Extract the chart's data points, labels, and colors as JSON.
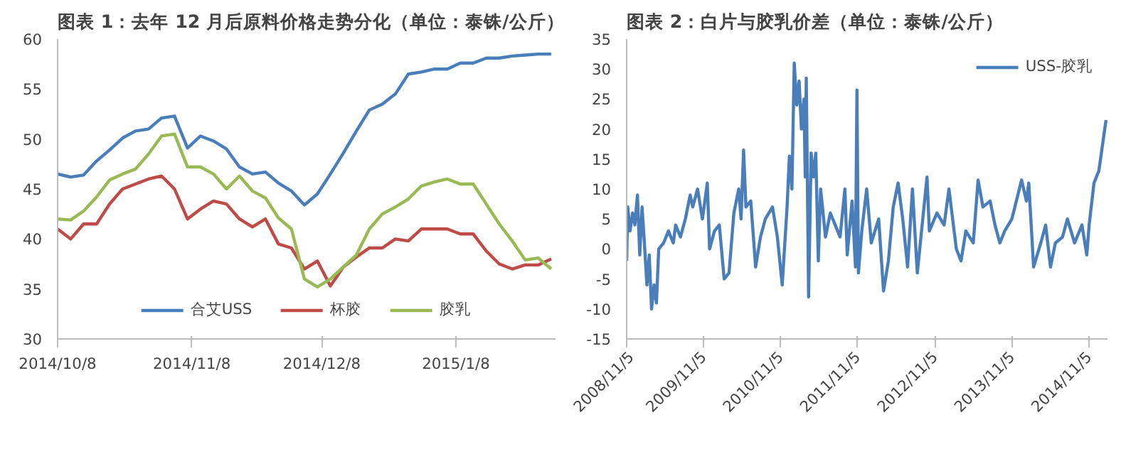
{
  "chart_data": [
    {
      "type": "line",
      "title": "图表 1：去年 12 月后原料价格走势分化（单位：泰铢/公斤）",
      "x": [
        "2014-10-08",
        "2014-10-11",
        "2014-10-14",
        "2014-10-17",
        "2014-10-20",
        "2014-10-23",
        "2014-10-26",
        "2014-10-29",
        "2014-11-01",
        "2014-11-04",
        "2014-11-07",
        "2014-11-10",
        "2014-11-13",
        "2014-11-16",
        "2014-11-19",
        "2014-11-22",
        "2014-11-25",
        "2014-11-28",
        "2014-12-01",
        "2014-12-04",
        "2014-12-07",
        "2014-12-10",
        "2014-12-13",
        "2014-12-16",
        "2014-12-19",
        "2014-12-22",
        "2014-12-25",
        "2014-12-28",
        "2014-12-31",
        "2015-01-03",
        "2015-01-06",
        "2015-01-09",
        "2015-01-12",
        "2015-01-15",
        "2015-01-18",
        "2015-01-21",
        "2015-01-24",
        "2015-01-27",
        "2015-01-30"
      ],
      "series": [
        {
          "name": "合艾USS",
          "color": "#4a7ebb",
          "values": [
            46.5,
            46.2,
            46.4,
            47.8,
            48.9,
            50.1,
            50.8,
            51,
            52.1,
            52.3,
            49.1,
            50.3,
            49.8,
            49,
            47.2,
            46.5,
            46.7,
            45.6,
            44.8,
            43.4,
            44.5,
            46.5,
            48.6,
            50.8,
            52.9,
            53.5,
            54.5,
            56.5,
            56.7,
            57,
            57,
            57.6,
            57.6,
            58.1,
            58.1,
            58.3,
            58.4,
            58.5,
            58.5
          ]
        },
        {
          "name": "杯胶",
          "color": "#be4b48",
          "values": [
            41,
            40,
            41.5,
            41.5,
            43.5,
            45,
            45.5,
            46,
            46.3,
            45,
            42,
            43,
            43.8,
            43.5,
            42,
            41.2,
            42,
            39.5,
            39.1,
            37,
            37.8,
            35.3,
            37.2,
            38.2,
            39.1,
            39.1,
            40,
            39.8,
            41,
            41,
            41,
            40.5,
            40.5,
            38.8,
            37.5,
            37,
            37.4,
            37.4,
            38
          ]
        },
        {
          "name": "胶乳",
          "color": "#98b954",
          "values": [
            42,
            41.9,
            42.8,
            44.2,
            45.9,
            46.5,
            47,
            48.5,
            50.3,
            50.5,
            47.2,
            47.2,
            46.5,
            45,
            46.3,
            44.8,
            44.1,
            42.1,
            41,
            36,
            35.2,
            36,
            37.2,
            38.4,
            41,
            42.5,
            43.2,
            44,
            45.3,
            45.7,
            46,
            45.5,
            45.5,
            43.5,
            41.5,
            39.8,
            37.9,
            38.1,
            37
          ]
        }
      ],
      "xlim": [
        "2014-10-08",
        "2015-01-31"
      ],
      "xticks": [
        {
          "value": "2014-10-08",
          "label": "2014/10/8"
        },
        {
          "value": "2014-11-08",
          "label": "2014/11/8"
        },
        {
          "value": "2014-12-08",
          "label": "2014/12/8"
        },
        {
          "value": "2015-01-08",
          "label": "2015/1/8"
        }
      ],
      "ylim": [
        30,
        60
      ],
      "yticks": [
        30,
        35,
        40,
        45,
        50,
        55,
        60
      ],
      "grid": false,
      "legend": "bottom",
      "marker": "none",
      "line_style": "solid"
    },
    {
      "type": "line",
      "title": "图表 2：白片与胶乳价差（单位：泰铢/公斤）",
      "series": [
        {
          "name": "USS-胶乳",
          "color": "#4a7ebb",
          "x": [
            "2008-11-05",
            "2008-11-10",
            "2008-11-21",
            "2008-12-03",
            "2008-12-14",
            "2008-12-26",
            "2009-01-06",
            "2009-01-17",
            "2009-01-28",
            "2009-02-09",
            "2009-02-20",
            "2009-03-03",
            "2009-03-15",
            "2009-03-26",
            "2009-04-06",
            "2009-04-29",
            "2009-05-22",
            "2009-06-14",
            "2009-06-25",
            "2009-07-18",
            "2009-08-10",
            "2009-09-02",
            "2009-09-14",
            "2009-10-07",
            "2009-10-30",
            "2009-11-22",
            "2009-12-03",
            "2009-12-26",
            "2010-01-18",
            "2010-02-10",
            "2010-03-05",
            "2010-03-28",
            "2010-04-20",
            "2010-05-01",
            "2010-05-13",
            "2010-05-24",
            "2010-06-16",
            "2010-07-09",
            "2010-08-01",
            "2010-08-24",
            "2010-09-27",
            "2010-10-20",
            "2010-11-12",
            "2010-12-05",
            "2010-12-16",
            "2010-12-28",
            "2011-01-08",
            "2011-01-20",
            "2011-01-31",
            "2011-02-11",
            "2011-02-23",
            "2011-03-01",
            "2011-03-06",
            "2011-03-17",
            "2011-03-29",
            "2011-04-09",
            "2011-04-20",
            "2011-05-02",
            "2011-05-13",
            "2011-06-05",
            "2011-06-28",
            "2011-07-21",
            "2011-08-13",
            "2011-09-05",
            "2011-09-16",
            "2011-10-09",
            "2011-10-25",
            "2011-11-01",
            "2011-11-08",
            "2011-11-24",
            "2011-12-17",
            "2012-01-08",
            "2012-02-12",
            "2012-03-06",
            "2012-03-29",
            "2012-04-21",
            "2012-05-14",
            "2012-06-05",
            "2012-06-28",
            "2012-07-21",
            "2012-08-13",
            "2012-09-05",
            "2012-09-28",
            "2012-10-09",
            "2012-11-14",
            "2012-12-18",
            "2013-01-10",
            "2013-02-14",
            "2013-03-08",
            "2013-03-31",
            "2013-05-05",
            "2013-05-28",
            "2013-06-20",
            "2013-07-24",
            "2013-08-16",
            "2013-09-08",
            "2013-10-01",
            "2013-11-04",
            "2013-12-20",
            "2014-01-12",
            "2014-01-23",
            "2014-02-15",
            "2014-03-21",
            "2014-04-13",
            "2014-05-06",
            "2014-05-29",
            "2014-07-02",
            "2014-07-25",
            "2014-08-28",
            "2014-10-02",
            "2014-10-25",
            "2014-11-05",
            "2014-11-28",
            "2014-12-21",
            "2015-01-24"
          ],
          "values": [
            -2,
            7,
            3,
            6,
            4,
            9,
            -1,
            7,
            1,
            -6,
            -1,
            -10,
            -6,
            -9,
            0,
            1,
            3,
            1,
            4,
            2,
            5,
            9,
            7,
            10,
            5,
            11,
            0,
            3,
            4,
            -5,
            -4,
            6,
            10,
            5,
            16.5,
            7,
            8,
            -3,
            2,
            5,
            7,
            2,
            -6,
            7,
            15.5,
            10,
            31,
            24,
            28,
            20,
            25,
            12,
            28.5,
            -8,
            16,
            12,
            16,
            -2,
            10,
            2,
            6,
            4,
            2,
            10,
            -1,
            8,
            -3,
            26.5,
            -4,
            3,
            10,
            1,
            5,
            -7,
            -2,
            7,
            11,
            5,
            -3,
            10,
            -4,
            4,
            12,
            3,
            6,
            4,
            10,
            0,
            -2,
            3,
            1,
            11.5,
            7,
            8,
            4,
            1,
            3,
            5,
            11.5,
            8,
            11,
            -3,
            1,
            4,
            -3,
            1,
            2,
            5,
            1,
            4,
            -1,
            4,
            11,
            13,
            21.5
          ]
        }
      ],
      "xlim": [
        "2008-11-05",
        "2015-01-31"
      ],
      "xticks": [
        {
          "value": "2008-11-05",
          "label": "2008/11/5"
        },
        {
          "value": "2009-11-05",
          "label": "2009/11/5"
        },
        {
          "value": "2010-11-05",
          "label": "2010/11/5"
        },
        {
          "value": "2011-11-05",
          "label": "2011/11/5"
        },
        {
          "value": "2012-11-05",
          "label": "2012/11/5"
        },
        {
          "value": "2013-11-05",
          "label": "2013/11/5"
        },
        {
          "value": "2014-11-05",
          "label": "2014/11/5"
        }
      ],
      "ylim": [
        -15,
        35
      ],
      "yticks": [
        -15,
        -10,
        -5,
        0,
        5,
        10,
        15,
        20,
        25,
        30,
        35
      ],
      "grid": false,
      "legend": "top right",
      "marker": "none",
      "line_style": "solid"
    }
  ]
}
